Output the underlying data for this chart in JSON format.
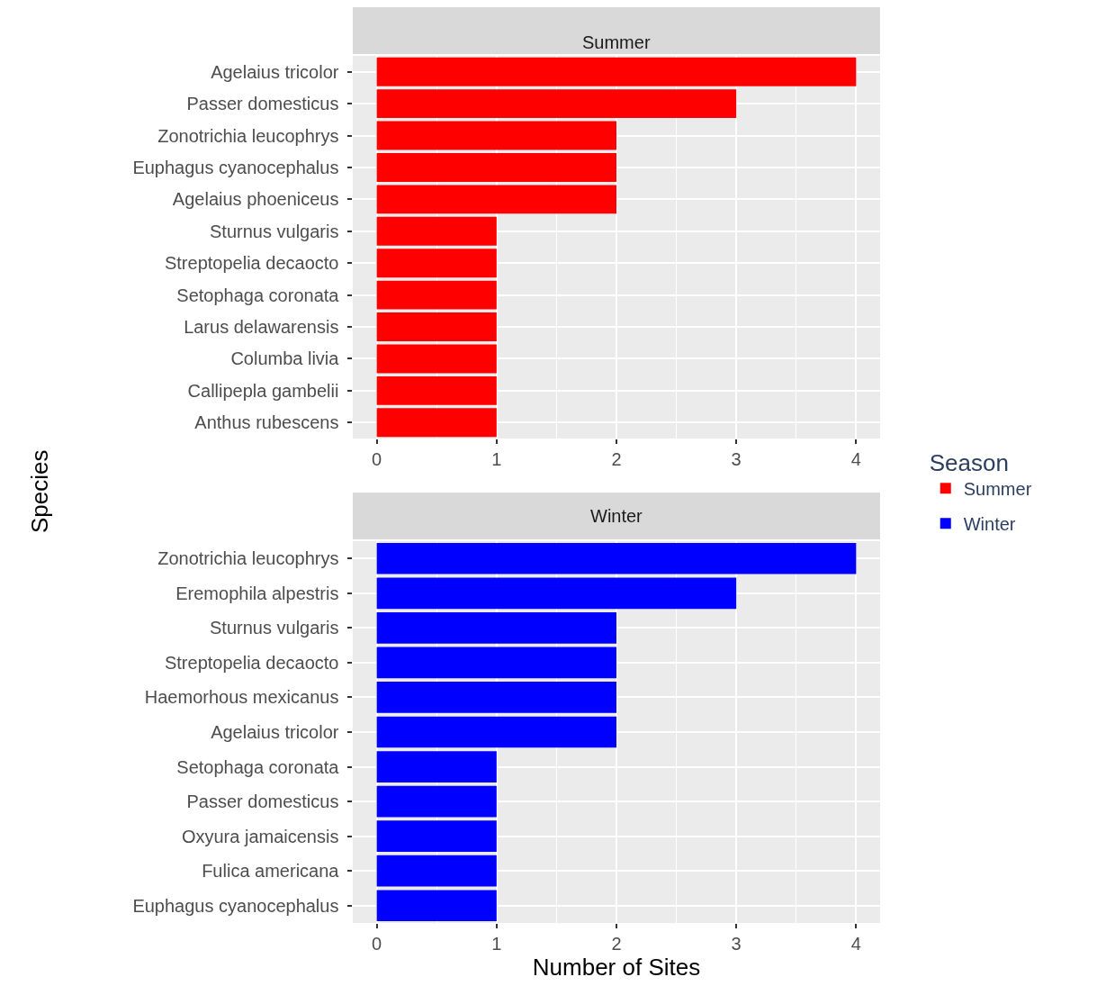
{
  "chart_data": [
    {
      "type": "bar",
      "orientation": "horizontal",
      "title": "Summer",
      "ylabel": "Species",
      "legend_title": "Season",
      "legend": "right",
      "grid": true,
      "xlim": [
        -0.2,
        4.2
      ],
      "xticks": [
        0,
        1,
        2,
        3,
        4
      ],
      "categories": [
        "Agelaius tricolor",
        "Passer domesticus",
        "Zonotrichia leucophrys",
        "Euphagus cyanocephalus",
        "Agelaius phoeniceus",
        "Sturnus vulgaris",
        "Streptopelia decaocto",
        "Setophaga coronata",
        "Larus delawarensis",
        "Columba livia",
        "Callipepla gambelii",
        "Anthus rubescens"
      ],
      "series": [
        {
          "name": "Summer",
          "color": "#ff0000",
          "values": [
            4,
            3,
            2,
            2,
            2,
            1,
            1,
            1,
            1,
            1,
            1,
            1
          ]
        }
      ]
    },
    {
      "type": "bar",
      "orientation": "horizontal",
      "title": "Winter",
      "xlabel": "Number of Sites",
      "legend": "right",
      "grid": true,
      "xlim": [
        -0.2,
        4.2
      ],
      "xticks": [
        0,
        1,
        2,
        3,
        4
      ],
      "categories": [
        "Zonotrichia leucophrys",
        "Eremophila alpestris",
        "Sturnus vulgaris",
        "Streptopelia decaocto",
        "Haemorhous mexicanus",
        "Agelaius tricolor",
        "Setophaga coronata",
        "Passer domesticus",
        "Oxyura jamaicensis",
        "Fulica americana",
        "Euphagus cyanocephalus"
      ],
      "series": [
        {
          "name": "Winter",
          "color": "#0000ff",
          "values": [
            4,
            3,
            2,
            2,
            2,
            2,
            1,
            1,
            1,
            1,
            1
          ]
        }
      ]
    }
  ]
}
